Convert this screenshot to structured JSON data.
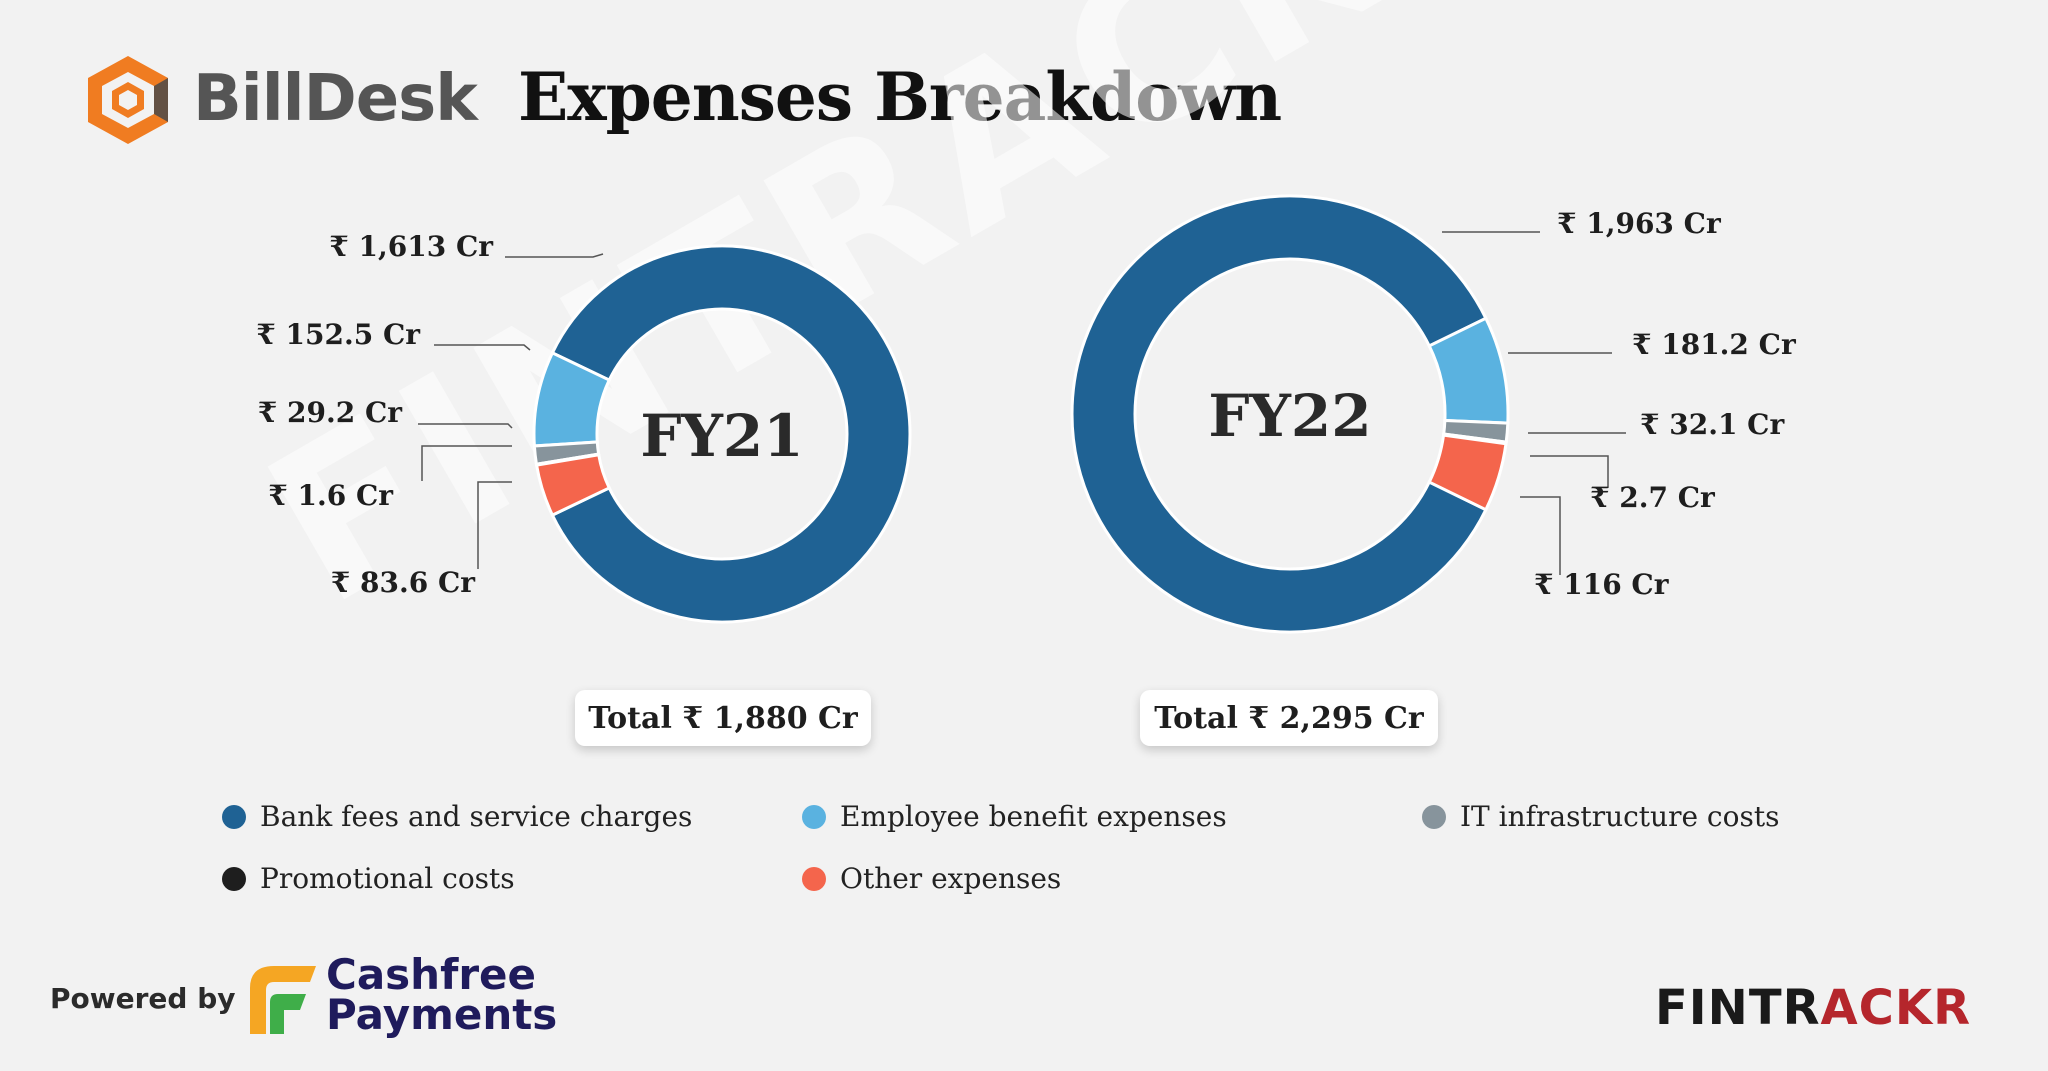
{
  "brand": {
    "name": "BillDesk",
    "logo_color": "#f07c21",
    "text_color": "#555555"
  },
  "title": "Expenses Breakdown",
  "watermark": "FINTRACKR",
  "legend": [
    {
      "name": "Bank fees and service charges",
      "color": "#1f6294"
    },
    {
      "name": "Employee benefit expenses",
      "color": "#5ab2e0"
    },
    {
      "name": "IT infrastructure costs",
      "color": "#87949c"
    },
    {
      "name": "Promotional costs",
      "color": "#1e1e1e"
    },
    {
      "name": "Other expenses",
      "color": "#f4654c"
    }
  ],
  "chart_data": [
    {
      "type": "pie",
      "donut": true,
      "center_label": "FY21",
      "total_label": "Total ₹ 1,880 Cr",
      "categories": [
        "Bank fees and service charges",
        "Employee benefit expenses",
        "IT infrastructure costs",
        "Promotional costs",
        "Other expenses"
      ],
      "values": [
        1613,
        152.5,
        29.2,
        1.6,
        83.6
      ],
      "value_labels": [
        "₹ 1,613 Cr",
        "₹ 152.5 Cr",
        "₹ 29.2 Cr",
        "₹ 1.6 Cr",
        "₹ 83.6 Cr"
      ],
      "label_side": "left"
    },
    {
      "type": "pie",
      "donut": true,
      "center_label": "FY22",
      "total_label": "Total ₹ 2,295 Cr",
      "categories": [
        "Bank fees and service charges",
        "Employee benefit expenses",
        "IT infrastructure costs",
        "Promotional costs",
        "Other expenses"
      ],
      "values": [
        1963,
        181.2,
        32.1,
        2.7,
        116
      ],
      "value_labels": [
        "₹ 1,963 Cr",
        "₹ 181.2 Cr",
        "₹ 32.1 Cr",
        "₹ 2.7 Cr",
        "₹ 116 Cr"
      ],
      "label_side": "right"
    }
  ],
  "footer": {
    "powered_by": "Powered by",
    "partner_line1": "Cashfree",
    "partner_line2": "Payments",
    "fintrackr_dark": "FINTR",
    "fintrackr_red": "ACKR",
    "fintrackr_red_color": "#b5262c"
  }
}
